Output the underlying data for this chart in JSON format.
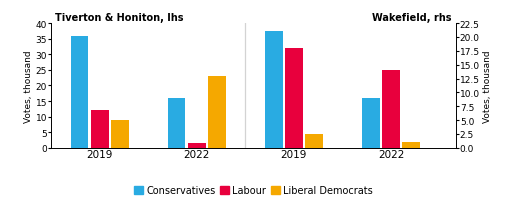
{
  "title_lhs": "Tiverton & Honiton, lhs",
  "title_rhs": "Wakefield, rhs",
  "ylabel_lhs": "Votes, thousand",
  "ylabel_rhs": "Votes, thousand",
  "ylim_lhs": [
    0,
    40
  ],
  "ylim_rhs": [
    0,
    22.5
  ],
  "yticks_lhs": [
    0,
    5,
    10,
    15,
    20,
    25,
    30,
    35,
    40
  ],
  "yticks_rhs": [
    0.0,
    2.5,
    5.0,
    7.5,
    10.0,
    12.5,
    15.0,
    17.5,
    20.0,
    22.5
  ],
  "tiverton_2019": {
    "con": 36.0,
    "lab": 12.0,
    "ld": 9.0
  },
  "tiverton_2022": {
    "con": 16.0,
    "lab": 1.5,
    "ld": 23.0
  },
  "wakefield_2019": {
    "con": 21.0,
    "lab": 18.0,
    "ld": 2.5
  },
  "wakefield_2022": {
    "con": 9.0,
    "lab": 14.0,
    "ld": 1.0
  },
  "con_color": "#29ABE2",
  "lab_color": "#E8003D",
  "ld_color": "#F5A800",
  "legend_labels": [
    "Conservatives",
    "Labour",
    "Liberal Democrats"
  ],
  "background_color": "#ffffff",
  "x_tiv19": 0.9,
  "x_tiv22": 2.1,
  "x_wak19": 3.3,
  "x_wak22": 4.5,
  "bar_width": 0.25,
  "xlim": [
    0.3,
    5.3
  ]
}
